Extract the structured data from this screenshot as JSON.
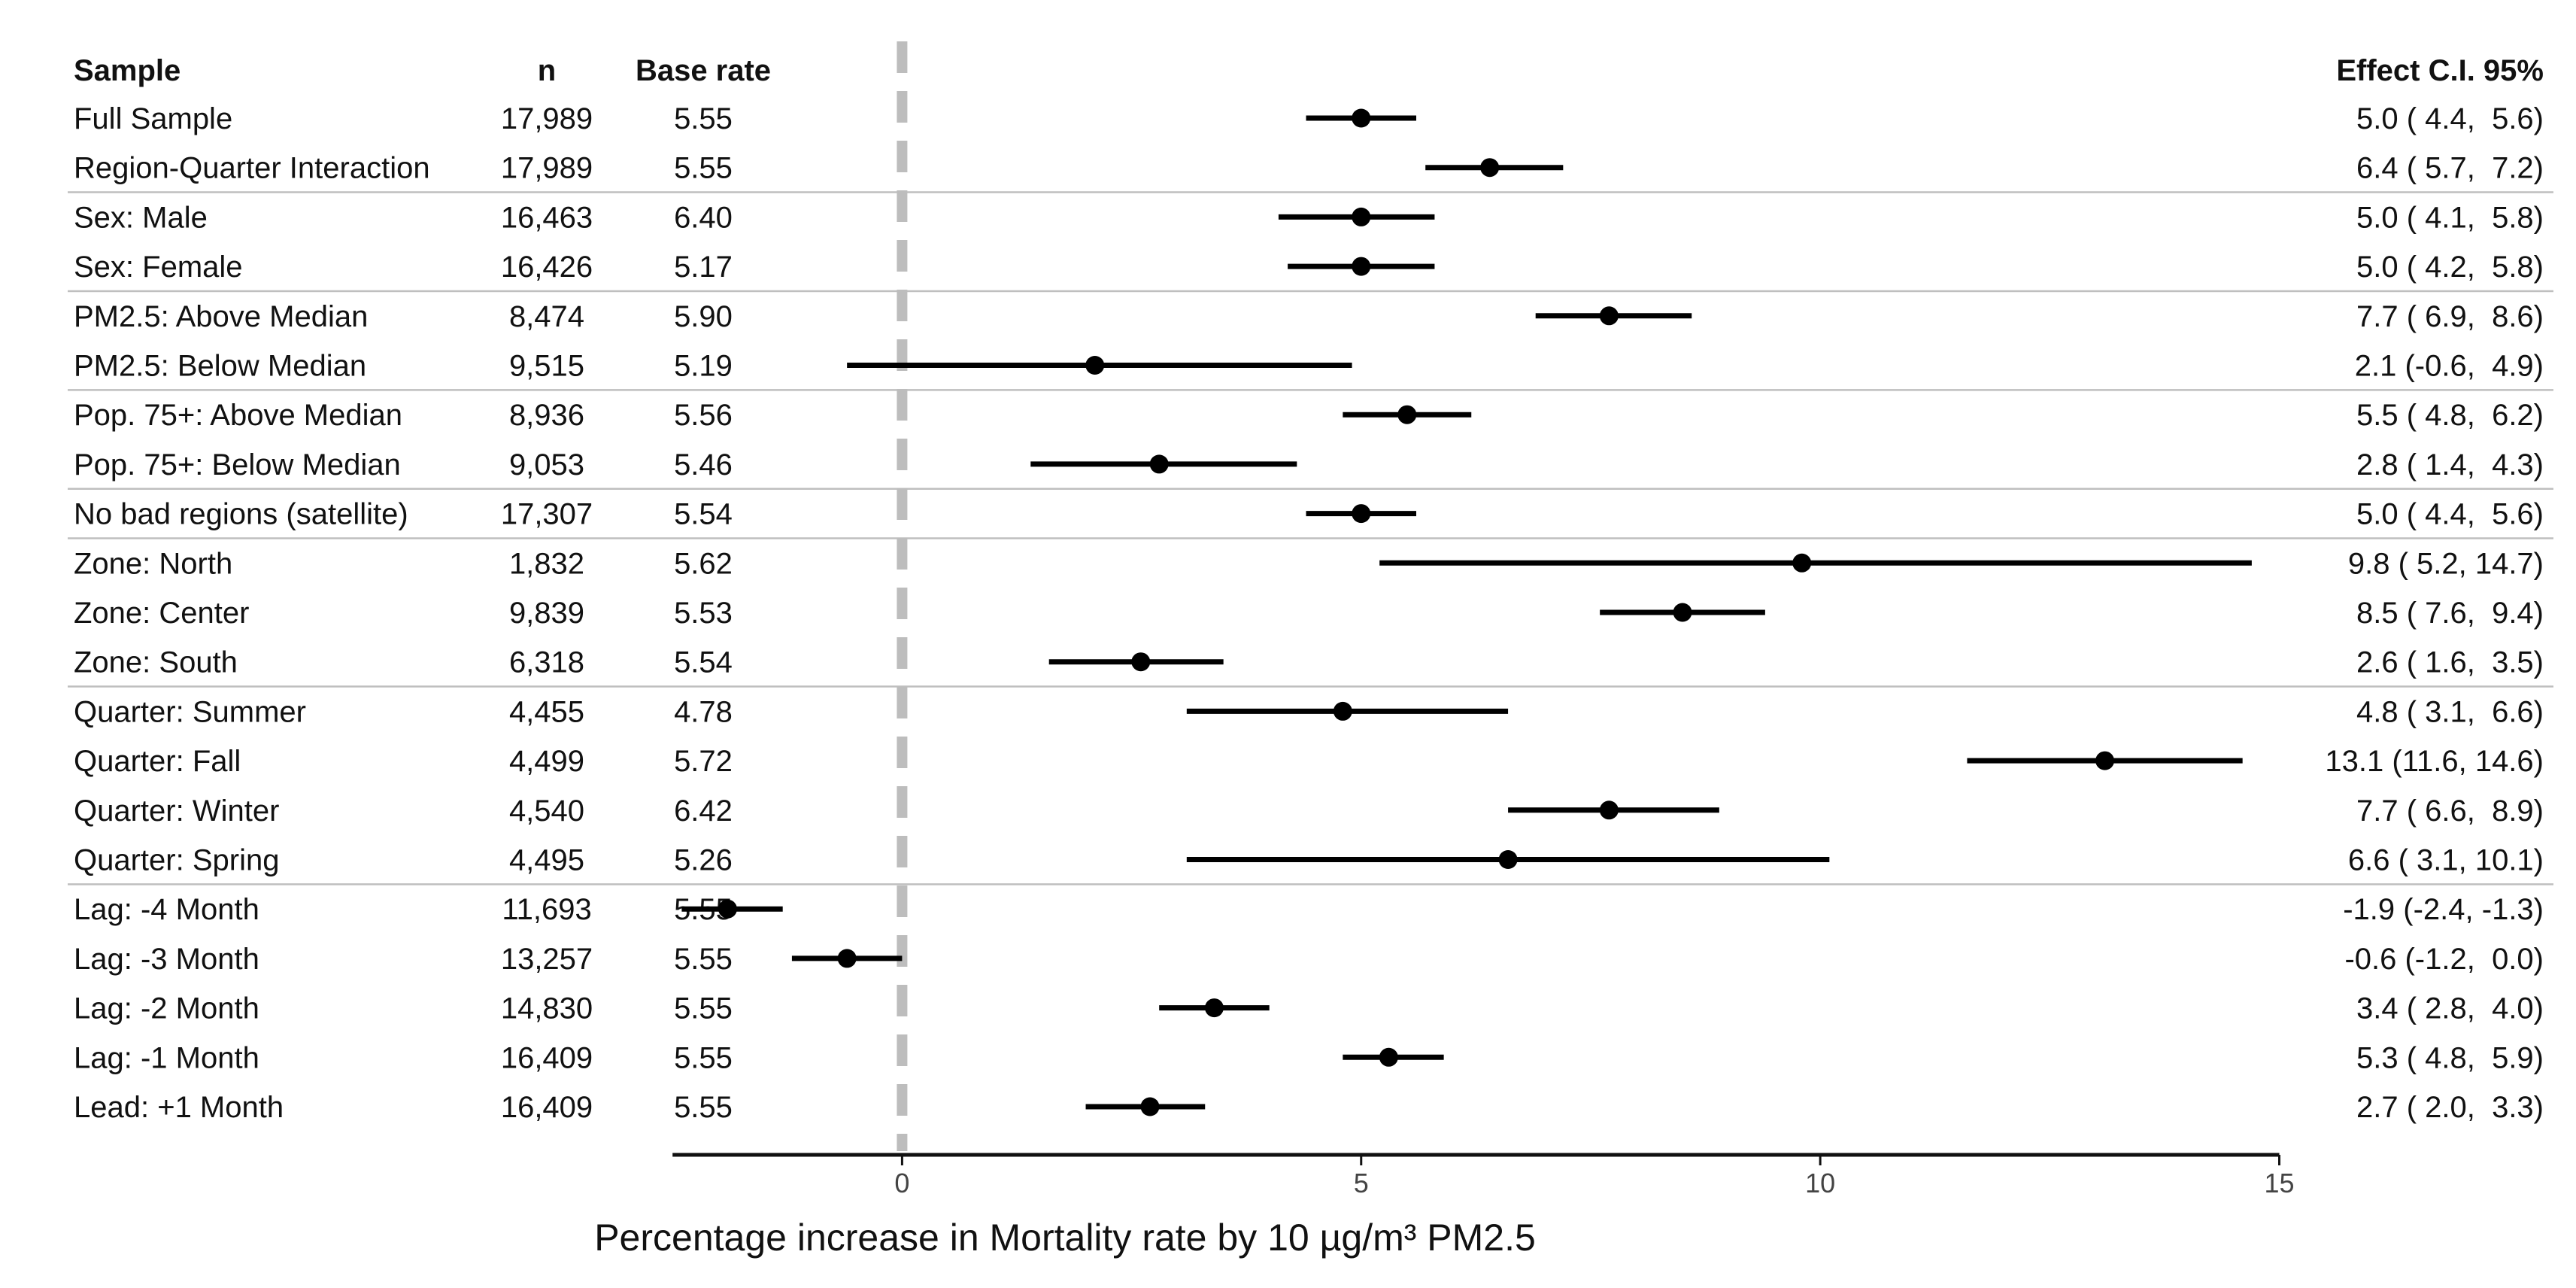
{
  "chart_data": {
    "type": "forest",
    "headers": {
      "sample": "Sample",
      "n": "n",
      "base_rate": "Base rate",
      "effect": "Effect C.I. 95%"
    },
    "rows": [
      {
        "label": "Full Sample",
        "n": "17,989",
        "base_rate": "5.55",
        "est": 5.0,
        "lo": 4.4,
        "hi": 5.6,
        "effect": "5.0 ( 4.4,  5.6)"
      },
      {
        "label": "Region-Quarter Interaction",
        "n": "17,989",
        "base_rate": "5.55",
        "est": 6.4,
        "lo": 5.7,
        "hi": 7.2,
        "effect": "6.4 ( 5.7,  7.2)"
      },
      {
        "label": "Sex: Male",
        "n": "16,463",
        "base_rate": "6.40",
        "est": 5.0,
        "lo": 4.1,
        "hi": 5.8,
        "effect": "5.0 ( 4.1,  5.8)"
      },
      {
        "label": "Sex: Female",
        "n": "16,426",
        "base_rate": "5.17",
        "est": 5.0,
        "lo": 4.2,
        "hi": 5.8,
        "effect": "5.0 ( 4.2,  5.8)"
      },
      {
        "label": "PM2.5: Above Median",
        "n": "8,474",
        "base_rate": "5.90",
        "est": 7.7,
        "lo": 6.9,
        "hi": 8.6,
        "effect": "7.7 ( 6.9,  8.6)"
      },
      {
        "label": "PM2.5: Below Median",
        "n": "9,515",
        "base_rate": "5.19",
        "est": 2.1,
        "lo": -0.6,
        "hi": 4.9,
        "effect": "2.1 (-0.6,  4.9)"
      },
      {
        "label": "Pop. 75+: Above Median",
        "n": "8,936",
        "base_rate": "5.56",
        "est": 5.5,
        "lo": 4.8,
        "hi": 6.2,
        "effect": "5.5 ( 4.8,  6.2)"
      },
      {
        "label": "Pop. 75+: Below Median",
        "n": "9,053",
        "base_rate": "5.46",
        "est": 2.8,
        "lo": 1.4,
        "hi": 4.3,
        "effect": "2.8 ( 1.4,  4.3)"
      },
      {
        "label": "No bad regions (satellite)",
        "n": "17,307",
        "base_rate": "5.54",
        "est": 5.0,
        "lo": 4.4,
        "hi": 5.6,
        "effect": "5.0 ( 4.4,  5.6)"
      },
      {
        "label": "Zone: North",
        "n": "1,832",
        "base_rate": "5.62",
        "est": 9.8,
        "lo": 5.2,
        "hi": 14.7,
        "effect": "9.8 ( 5.2, 14.7)"
      },
      {
        "label": "Zone: Center",
        "n": "9,839",
        "base_rate": "5.53",
        "est": 8.5,
        "lo": 7.6,
        "hi": 9.4,
        "effect": "8.5 ( 7.6,  9.4)"
      },
      {
        "label": "Zone: South",
        "n": "6,318",
        "base_rate": "5.54",
        "est": 2.6,
        "lo": 1.6,
        "hi": 3.5,
        "effect": "2.6 ( 1.6,  3.5)"
      },
      {
        "label": "Quarter: Summer",
        "n": "4,455",
        "base_rate": "4.78",
        "est": 4.8,
        "lo": 3.1,
        "hi": 6.6,
        "effect": "4.8 ( 3.1,  6.6)"
      },
      {
        "label": "Quarter: Fall",
        "n": "4,499",
        "base_rate": "5.72",
        "est": 13.1,
        "lo": 11.6,
        "hi": 14.6,
        "effect": "13.1 (11.6, 14.6)"
      },
      {
        "label": "Quarter: Winter",
        "n": "4,540",
        "base_rate": "6.42",
        "est": 7.7,
        "lo": 6.6,
        "hi": 8.9,
        "effect": "7.7 ( 6.6,  8.9)"
      },
      {
        "label": "Quarter: Spring",
        "n": "4,495",
        "base_rate": "5.26",
        "est": 6.6,
        "lo": 3.1,
        "hi": 10.1,
        "effect": "6.6 ( 3.1, 10.1)"
      },
      {
        "label": "Lag: -4 Month",
        "n": "11,693",
        "base_rate": "5.55",
        "est": -1.9,
        "lo": -2.4,
        "hi": -1.3,
        "effect": "-1.9 (-2.4, -1.3)"
      },
      {
        "label": "Lag: -3 Month",
        "n": "13,257",
        "base_rate": "5.55",
        "est": -0.6,
        "lo": -1.2,
        "hi": 0.0,
        "effect": "-0.6 (-1.2,  0.0)"
      },
      {
        "label": "Lag: -2 Month",
        "n": "14,830",
        "base_rate": "5.55",
        "est": 3.4,
        "lo": 2.8,
        "hi": 4.0,
        "effect": "3.4 ( 2.8,  4.0)"
      },
      {
        "label": "Lag: -1 Month",
        "n": "16,409",
        "base_rate": "5.55",
        "est": 5.3,
        "lo": 4.8,
        "hi": 5.9,
        "effect": "5.3 ( 4.8,  5.9)"
      },
      {
        "label": "Lead: +1 Month",
        "n": "16,409",
        "base_rate": "5.55",
        "est": 2.7,
        "lo": 2.0,
        "hi": 3.3,
        "effect": "2.7 ( 2.0,  3.3)"
      }
    ],
    "group_separators_after_rows": [
      2,
      4,
      6,
      8,
      9,
      12,
      16
    ],
    "x_axis": {
      "label": "Percentage increase in Mortality rate by 10 µg/m³ PM2.5",
      "range": [
        -2.5,
        15
      ],
      "ticks": [
        0,
        5,
        10,
        15
      ]
    },
    "reference_line": {
      "x": 0,
      "style": "dashed"
    },
    "colors": {
      "marks": "#000000",
      "reference": "#bdbdbd",
      "separators": "#bfbfbf",
      "text": "#111111"
    }
  }
}
